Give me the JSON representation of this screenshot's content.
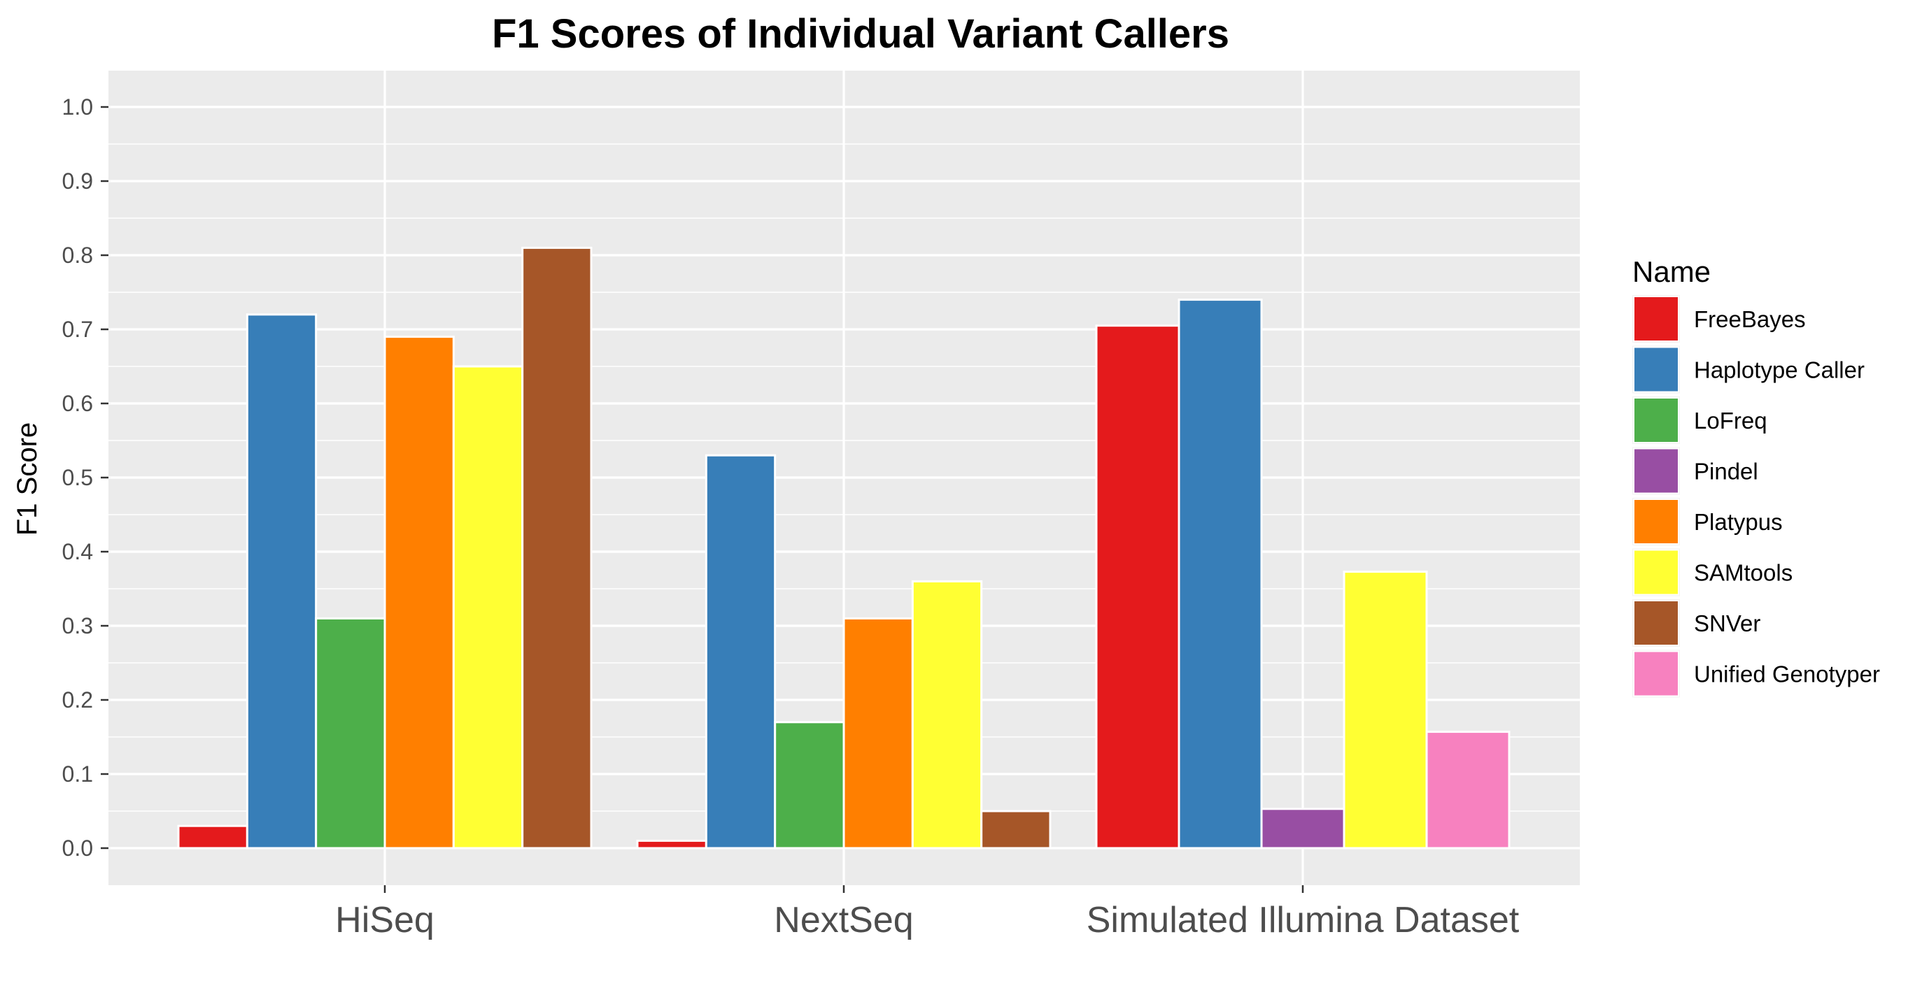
{
  "chart_data": {
    "type": "bar",
    "title": "F1 Scores of Individual Variant Callers",
    "xlabel": "",
    "ylabel": "F1 Score",
    "ylim": [
      -0.05,
      1.05
    ],
    "yticks": [
      "0.0",
      "0.1",
      "0.2",
      "0.3",
      "0.4",
      "0.5",
      "0.6",
      "0.7",
      "0.8",
      "0.9",
      "1.0"
    ],
    "grid": true,
    "legend": {
      "title": "Name",
      "position": "right"
    },
    "categories": [
      "HiSeq",
      "NextSeq",
      "Simulated Illumina Dataset"
    ],
    "series": [
      {
        "name": "FreeBayes",
        "color": "#E41A1C",
        "values": [
          0.03,
          0.01,
          0.705
        ]
      },
      {
        "name": "Haplotype Caller",
        "color": "#377EB8",
        "values": [
          0.72,
          0.53,
          0.74
        ]
      },
      {
        "name": "LoFreq",
        "color": "#4DAF4A",
        "values": [
          0.31,
          0.17,
          null
        ]
      },
      {
        "name": "Pindel",
        "color": "#984EA3",
        "values": [
          null,
          null,
          0.053
        ]
      },
      {
        "name": "Platypus",
        "color": "#FF7F00",
        "values": [
          0.69,
          0.31,
          null
        ]
      },
      {
        "name": "SAMtools",
        "color": "#FFFF33",
        "values": [
          0.65,
          0.36,
          0.373
        ]
      },
      {
        "name": "SNVer",
        "color": "#A65628",
        "values": [
          0.81,
          0.05,
          null
        ]
      },
      {
        "name": "Unified Genotyper",
        "color": "#F781BF",
        "values": [
          null,
          null,
          0.157
        ]
      }
    ]
  }
}
